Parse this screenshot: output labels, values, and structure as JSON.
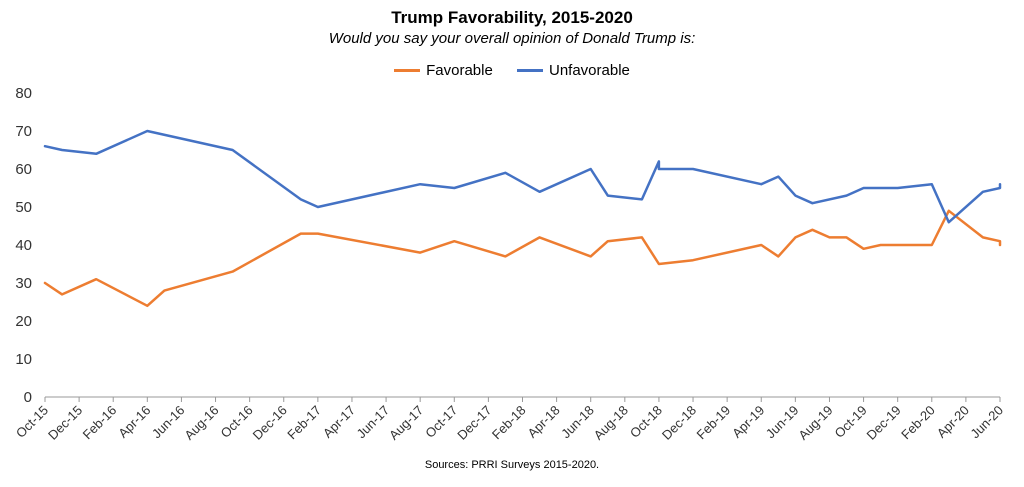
{
  "chart_data": {
    "type": "line",
    "title": "Trump Favorability, 2015-2020",
    "subtitle": "Would you say your overall opinion of Donald Trump is:",
    "source": "Sources: PRRI Surveys 2015-2020.",
    "ylim": [
      0,
      80
    ],
    "yticks": [
      "0",
      "10",
      "20",
      "30",
      "40",
      "50",
      "60",
      "70",
      "80"
    ],
    "xlim": [
      "2015-10",
      "2020-06"
    ],
    "xticks": [
      "Oct-15",
      "Dec-15",
      "Feb-16",
      "Apr-16",
      "Jun-16",
      "Aug-16",
      "Oct-16",
      "Dec-16",
      "Feb-17",
      "Apr-17",
      "Jun-17",
      "Aug-17",
      "Oct-17",
      "Dec-17",
      "Feb-18",
      "Apr-18",
      "Jun-18",
      "Aug-18",
      "Oct-18",
      "Dec-18",
      "Feb-19",
      "Apr-19",
      "Jun-19",
      "Aug-19",
      "Oct-19",
      "Dec-19",
      "Feb-20",
      "Apr-20",
      "Jun-20"
    ],
    "xtick_dates": [
      "2015-10",
      "2015-12",
      "2016-02",
      "2016-04",
      "2016-06",
      "2016-08",
      "2016-10",
      "2016-12",
      "2017-02",
      "2017-04",
      "2017-06",
      "2017-08",
      "2017-10",
      "2017-12",
      "2018-02",
      "2018-04",
      "2018-06",
      "2018-08",
      "2018-10",
      "2018-12",
      "2019-02",
      "2019-04",
      "2019-06",
      "2019-08",
      "2019-10",
      "2019-12",
      "2020-02",
      "2020-04",
      "2020-06"
    ],
    "grid": false,
    "legend_position": "top-center",
    "series": [
      {
        "name": "Favorable",
        "color": "#ED7D31",
        "x": [
          "2015-10",
          "2015-11",
          "2016-01",
          "2016-04",
          "2016-05",
          "2016-09",
          "2017-01",
          "2017-02",
          "2017-08",
          "2017-10",
          "2018-01",
          "2018-03",
          "2018-06",
          "2018-07",
          "2018-09",
          "2018-10",
          "2018-10",
          "2018-12",
          "2019-04",
          "2019-05",
          "2019-06",
          "2019-07",
          "2019-08",
          "2019-09",
          "2019-10",
          "2019-11",
          "2020-02",
          "2020-03",
          "2020-05",
          "2020-06",
          "2020-06"
        ],
        "values": [
          30,
          27,
          31,
          24,
          28,
          33,
          43,
          43,
          38,
          41,
          37,
          42,
          37,
          41,
          42,
          35,
          35,
          36,
          40,
          37,
          42,
          44,
          42,
          42,
          39,
          40,
          40,
          49,
          42,
          41,
          40
        ]
      },
      {
        "name": "Unfavorable",
        "color": "#4472C4",
        "x": [
          "2015-10",
          "2015-11",
          "2016-01",
          "2016-04",
          "2016-09",
          "2017-01",
          "2017-02",
          "2017-08",
          "2017-10",
          "2018-01",
          "2018-03",
          "2018-06",
          "2018-07",
          "2018-09",
          "2018-10",
          "2018-10",
          "2018-12",
          "2019-04",
          "2019-05",
          "2019-06",
          "2019-07",
          "2019-09",
          "2019-10",
          "2019-12",
          "2020-02",
          "2020-03",
          "2020-05",
          "2020-06",
          "2020-06"
        ],
        "values": [
          66,
          65,
          64,
          70,
          65,
          52,
          50,
          56,
          55,
          59,
          54,
          60,
          53,
          52,
          62,
          60,
          60,
          56,
          58,
          53,
          51,
          53,
          55,
          55,
          56,
          46,
          54,
          55,
          56
        ]
      }
    ]
  }
}
